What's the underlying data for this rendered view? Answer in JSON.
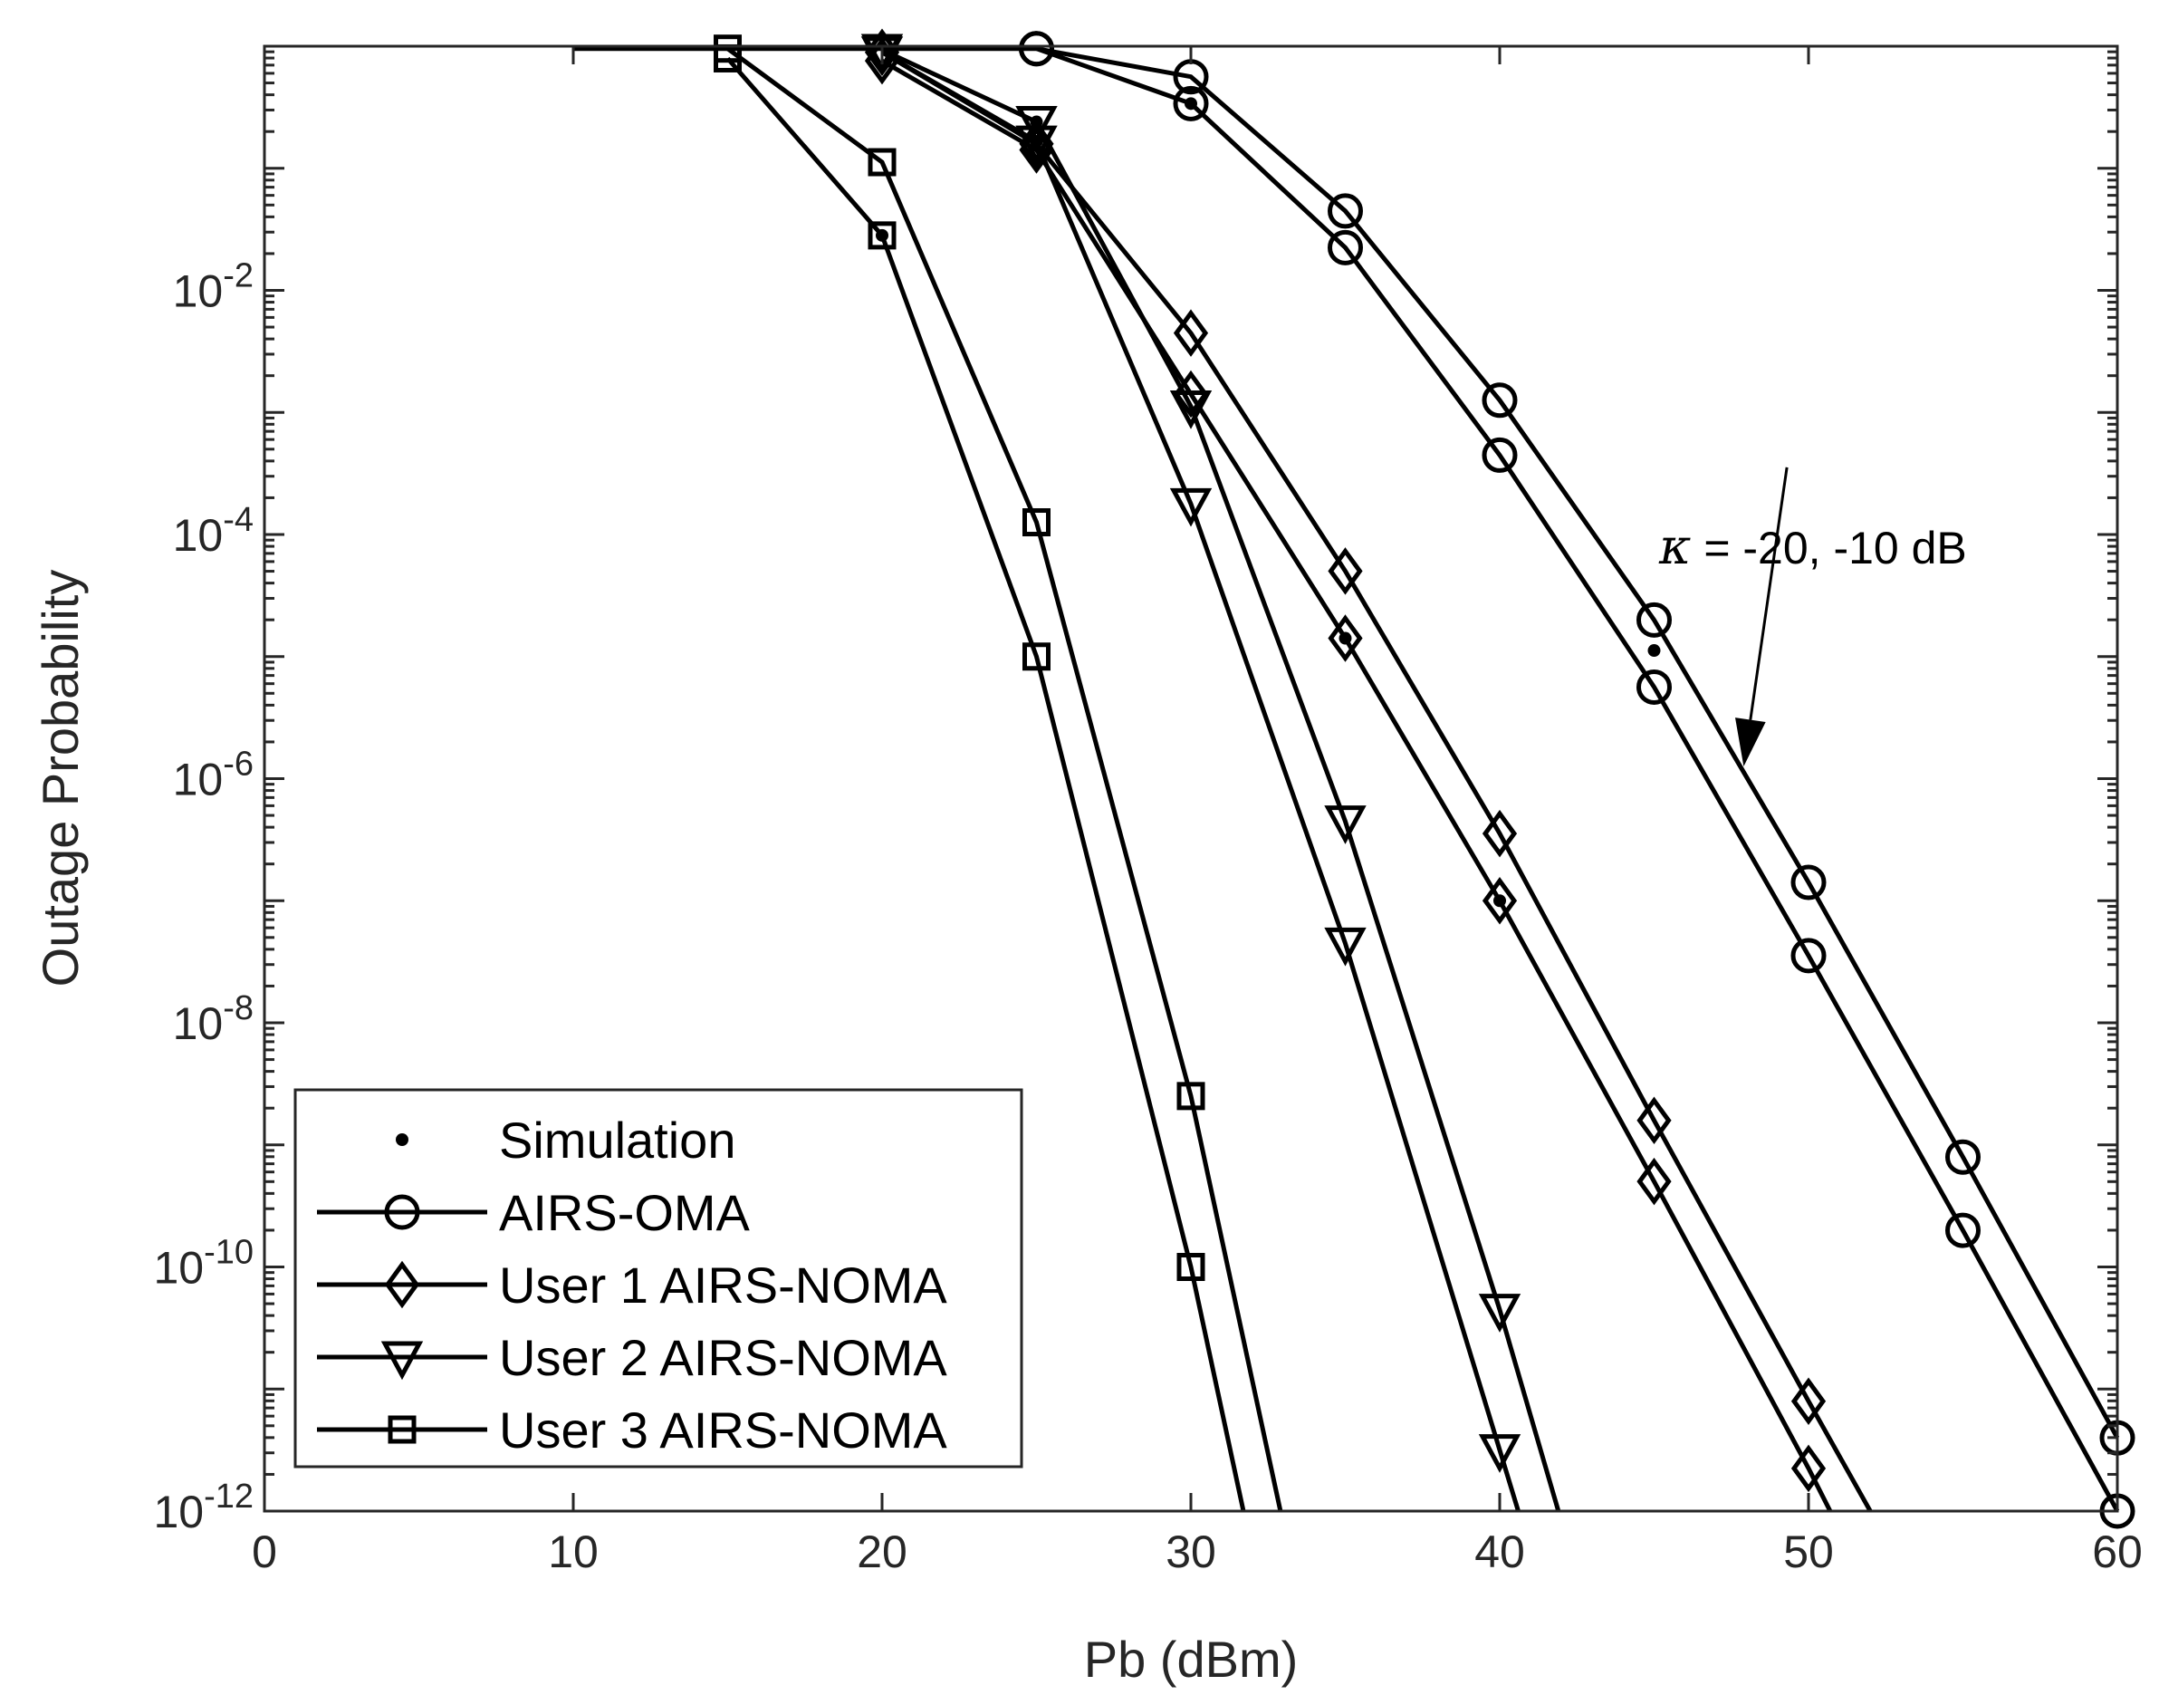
{
  "chart_data": {
    "type": "line",
    "xlabel": "Pb (dBm)",
    "ylabel": "Outage Probability",
    "xlim": [
      0,
      60
    ],
    "ylim_log10": [
      -12,
      0
    ],
    "x_ticks": [
      0,
      10,
      20,
      30,
      40,
      50,
      60
    ],
    "y_tick_exponents": [
      -12,
      -10,
      -8,
      -6,
      -4,
      -2
    ],
    "y_tick_base": "10",
    "legend": {
      "placement": "bottom-left",
      "entries": [
        {
          "label": "Simulation",
          "marker": "dot"
        },
        {
          "label": "AIRS-OMA",
          "marker": "circle"
        },
        {
          "label": "User 1 AIRS-NOMA",
          "marker": "diamond"
        },
        {
          "label": "User 2 AIRS-NOMA",
          "marker": "triangle-down"
        },
        {
          "label": "User 3 AIRS-NOMA",
          "marker": "square"
        }
      ]
    },
    "annotation": {
      "symbol": "κ",
      "text": " = -20, -10 dB",
      "arrow_from": [
        49.3,
        -3.45
      ],
      "arrow_to": [
        47.9,
        -5.9
      ]
    },
    "series": [
      {
        "name": "AIRS-OMA (κ = -20 dB)",
        "marker": "circle",
        "x": [
          25,
          30,
          35,
          40,
          45,
          50,
          55,
          60
        ],
        "log10_y": [
          -0.02,
          -0.25,
          -1.35,
          -2.9,
          -4.7,
          -6.85,
          -9.1,
          -11.4
        ]
      },
      {
        "name": "AIRS-OMA (κ = -10 dB)",
        "marker": "circle",
        "x": [
          10,
          25,
          30,
          35,
          40,
          45,
          50,
          55,
          60
        ],
        "log10_y": [
          -0.02,
          -0.02,
          -0.47,
          -1.65,
          -3.35,
          -5.25,
          -7.45,
          -9.7,
          -12.0
        ]
      },
      {
        "name": "User 1 AIRS-NOMA (κ = -20 dB)",
        "marker": "diamond",
        "x": [
          20,
          25,
          30,
          35,
          40,
          45,
          50,
          52
        ],
        "log10_y": [
          -0.05,
          -0.8,
          -2.35,
          -4.3,
          -6.45,
          -8.8,
          -11.1,
          -12.0
        ]
      },
      {
        "name": "User 1 AIRS-NOMA (κ = -10 dB)",
        "marker": "diamond",
        "x": [
          20,
          25,
          30,
          35,
          40,
          45,
          50,
          50.7
        ],
        "log10_y": [
          -0.12,
          -0.85,
          -2.85,
          -4.85,
          -7.0,
          -9.3,
          -11.65,
          -12.0
        ]
      },
      {
        "name": "User 2 AIRS-NOMA (κ = -20 dB)",
        "marker": "triangle-down",
        "x": [
          20,
          25,
          30,
          35,
          40,
          41.9
        ],
        "log10_y": [
          -0.03,
          -0.62,
          -2.95,
          -6.35,
          -10.35,
          -12.0
        ]
      },
      {
        "name": "User 2 AIRS-NOMA (κ = -10 dB)",
        "marker": "triangle-down",
        "x": [
          20,
          25,
          30,
          35,
          40,
          40.6
        ],
        "log10_y": [
          -0.05,
          -0.78,
          -3.75,
          -7.35,
          -11.5,
          -12.0
        ]
      },
      {
        "name": "User 3 AIRS-NOMA (κ = -20 dB)",
        "marker": "square",
        "x": [
          15,
          20,
          25,
          30,
          32.9
        ],
        "log10_y": [
          -0.02,
          -0.95,
          -3.9,
          -8.6,
          -12.0
        ]
      },
      {
        "name": "User 3 AIRS-NOMA (κ = -10 dB)",
        "marker": "square",
        "x": [
          15,
          20,
          25,
          30,
          31.7
        ],
        "log10_y": [
          -0.1,
          -1.55,
          -5.0,
          -10.0,
          -12.0
        ]
      }
    ],
    "simulation_points": {
      "marker": "dot",
      "x": [
        20,
        25,
        25,
        30,
        35,
        40,
        45
      ],
      "log10_y": [
        -1.55,
        -0.78,
        -0.62,
        -0.47,
        -4.85,
        -7.0,
        -4.95
      ]
    }
  }
}
